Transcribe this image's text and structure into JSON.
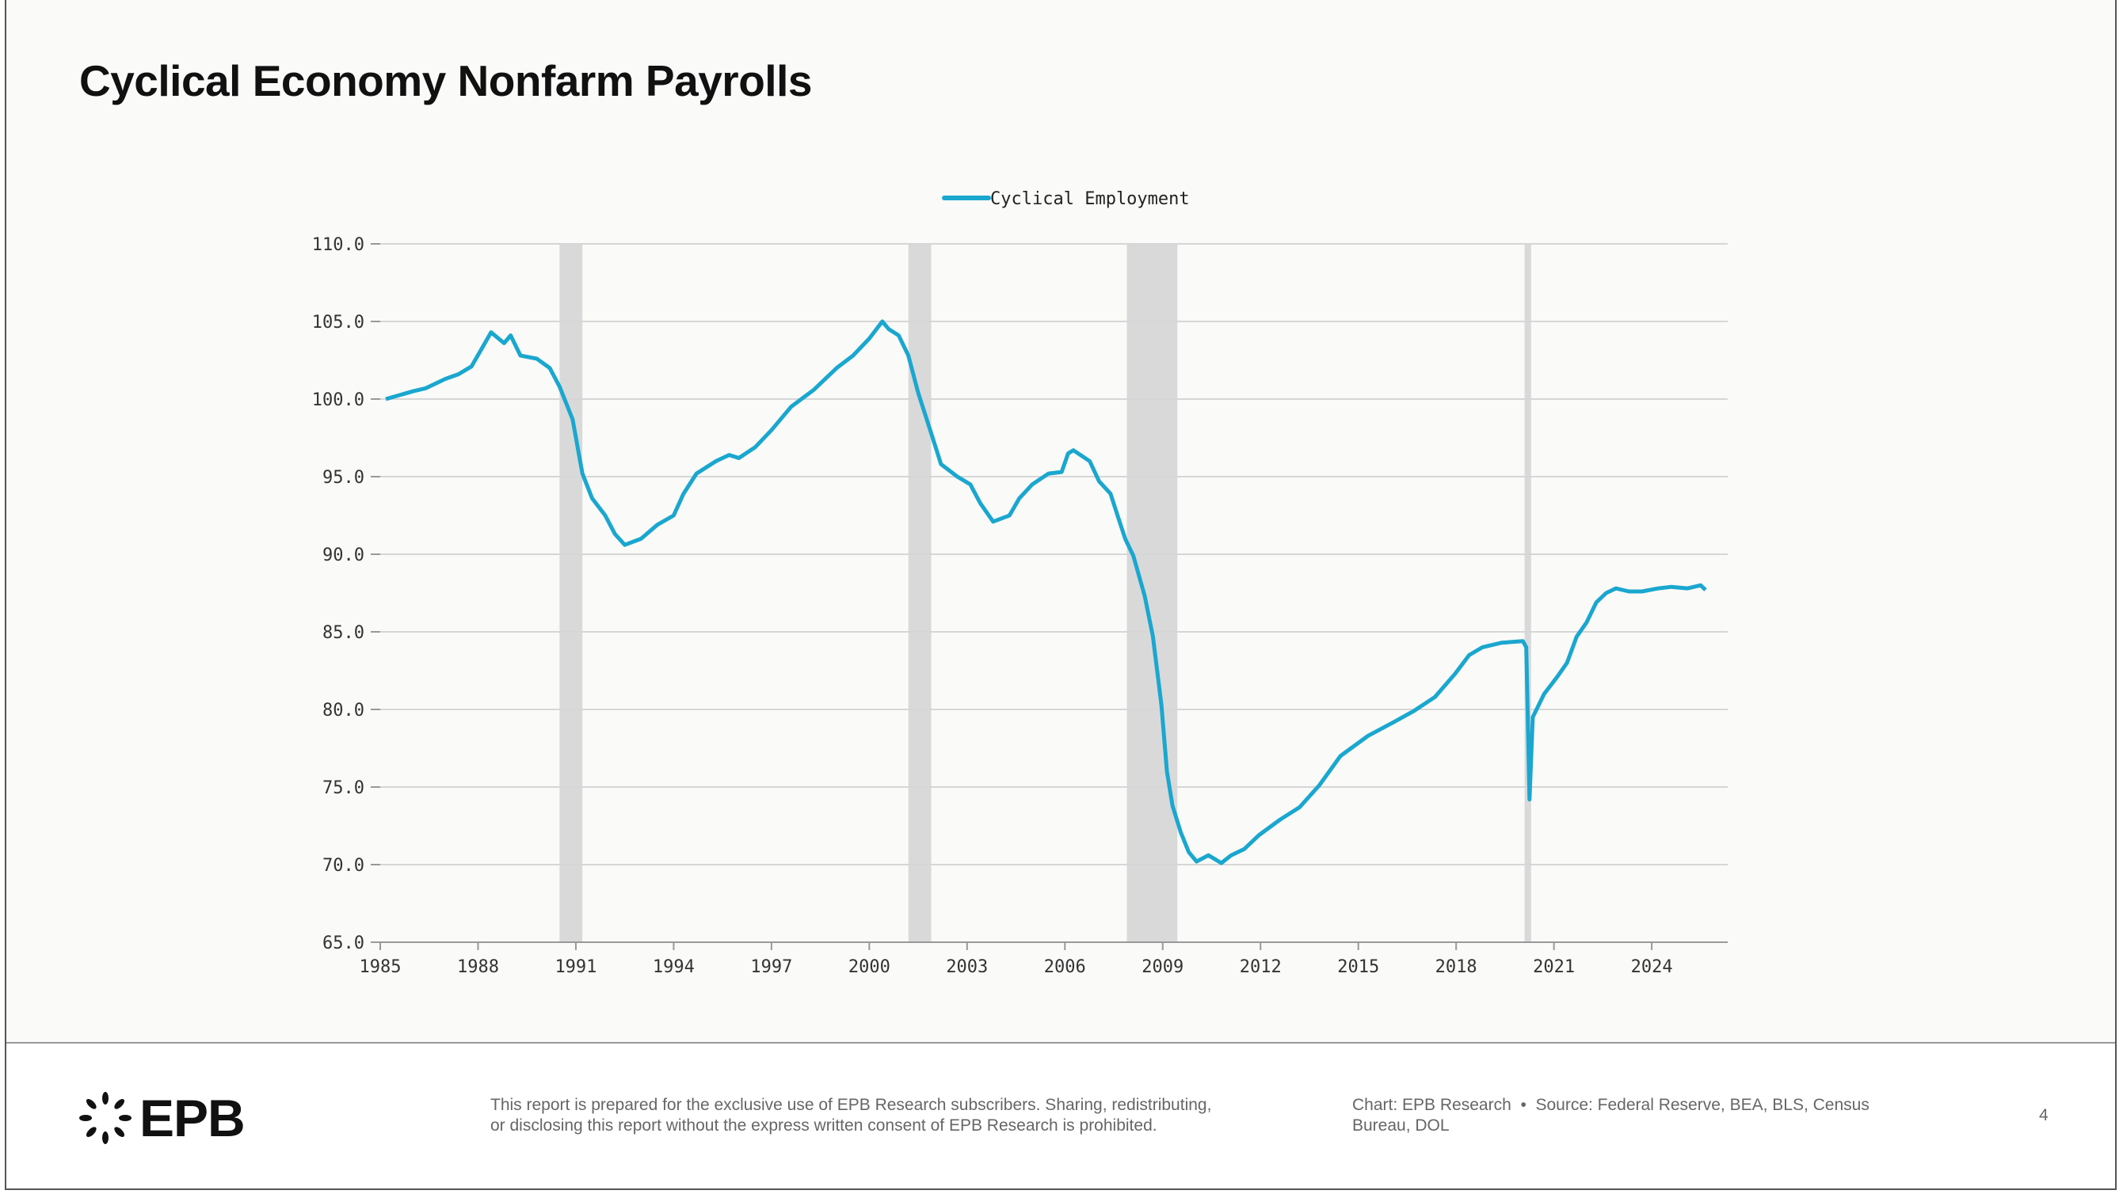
{
  "page": {
    "title": "Cyclical Economy Nonfarm Payrolls",
    "page_number": "4"
  },
  "footer": {
    "logo_text": "EPB",
    "disclaimer_line1": "This report is prepared for the exclusive use of EPB Research subscribers. Sharing, redistributing,",
    "disclaimer_line2": "or disclosing this report without the express written consent of EPB Research is prohibited.",
    "chart_credit": "Chart: EPB Research",
    "separator": "•",
    "source_line1": "Source: Federal Reserve, BEA, BLS, Census",
    "source_line2": "Bureau, DOL"
  },
  "colors": {
    "series": "#1aa7cf",
    "recession": "#d9d9d9",
    "grid": "#d6d6d6"
  },
  "chart_data": {
    "type": "line",
    "title": "Cyclical Economy Nonfarm Payrolls",
    "xlabel": "",
    "ylabel": "",
    "xlim": [
      1985,
      2026.33
    ],
    "ylim": [
      65,
      110
    ],
    "grid": "horizontal",
    "legend_placement": "top-center",
    "x_ticks": [
      1985,
      1988,
      1991,
      1994,
      1997,
      2000,
      2003,
      2006,
      2009,
      2012,
      2015,
      2018,
      2021,
      2024
    ],
    "x_tick_labels": [
      "1985",
      "1988",
      "1991",
      "1994",
      "1997",
      "2000",
      "2003",
      "2006",
      "2009",
      "2012",
      "2015",
      "2018",
      "2021",
      "2024"
    ],
    "y_ticks": [
      65,
      70,
      75,
      80,
      85,
      90,
      95,
      100,
      105,
      110
    ],
    "y_tick_labels": [
      "65.0",
      "70.0",
      "75.0",
      "80.0",
      "85.0",
      "90.0",
      "95.0",
      "100.0",
      "105.0",
      "110.0"
    ],
    "recessions": [
      [
        1990.5,
        1991.2
      ],
      [
        2001.2,
        2001.9
      ],
      [
        2007.9,
        2009.45
      ],
      [
        2020.1,
        2020.3
      ]
    ],
    "series": [
      {
        "name": "Cyclical Employment",
        "x": [
          1985.17,
          1985.5,
          1986.0,
          1986.4,
          1987.0,
          1987.4,
          1987.8,
          1988.1,
          1988.4,
          1988.8,
          1989.0,
          1989.3,
          1989.8,
          1990.2,
          1990.5,
          1990.9,
          1991.2,
          1991.5,
          1991.9,
          1992.2,
          1992.5,
          1993.0,
          1993.5,
          1994.0,
          1994.3,
          1994.7,
          1995.3,
          1995.7,
          1996.0,
          1996.5,
          1997.0,
          1997.6,
          1998.3,
          1999.0,
          1999.5,
          2000.0,
          2000.4,
          2000.6,
          2000.9,
          2001.2,
          2001.5,
          2001.9,
          2002.2,
          2002.7,
          2003.1,
          2003.4,
          2003.8,
          2004.3,
          2004.6,
          2005.0,
          2005.5,
          2005.9,
          2006.1,
          2006.26,
          2006.76,
          2007.05,
          2007.4,
          2007.6,
          2007.85,
          2008.1,
          2008.45,
          2008.7,
          2008.96,
          2009.13,
          2009.3,
          2009.55,
          2009.8,
          2010.04,
          2010.4,
          2010.8,
          2011.1,
          2011.5,
          2011.95,
          2012.6,
          2013.2,
          2013.8,
          2014.45,
          2015.3,
          2016.1,
          2016.7,
          2017.35,
          2017.97,
          2018.4,
          2018.8,
          2019.4,
          2020.05,
          2020.15,
          2020.25,
          2020.35,
          2020.7,
          2021.1,
          2021.4,
          2021.7,
          2022.0,
          2022.3,
          2022.6,
          2022.9,
          2023.3,
          2023.7,
          2024.2,
          2024.6,
          2025.1,
          2025.5,
          2025.65
        ],
        "y": [
          100.0,
          100.2,
          100.5,
          100.7,
          101.3,
          101.6,
          102.1,
          103.2,
          104.3,
          103.6,
          104.1,
          102.8,
          102.6,
          102.0,
          100.8,
          98.7,
          95.2,
          93.6,
          92.5,
          91.3,
          90.6,
          91.0,
          91.9,
          92.5,
          93.9,
          95.2,
          96.0,
          96.4,
          96.2,
          96.9,
          98.0,
          99.5,
          100.6,
          102.0,
          102.8,
          103.9,
          105.0,
          104.5,
          104.1,
          102.8,
          100.4,
          97.8,
          95.8,
          95.0,
          94.5,
          93.3,
          92.1,
          92.5,
          93.6,
          94.5,
          95.2,
          95.3,
          96.5,
          96.7,
          96.0,
          94.7,
          93.9,
          92.6,
          91.0,
          89.9,
          87.3,
          84.7,
          80.3,
          76.0,
          73.8,
          72.1,
          70.8,
          70.2,
          70.6,
          70.1,
          70.6,
          71.0,
          71.9,
          72.9,
          73.7,
          75.1,
          77.0,
          78.3,
          79.2,
          79.9,
          80.8,
          82.3,
          83.5,
          84.0,
          84.3,
          84.4,
          84.0,
          74.2,
          79.5,
          81.0,
          82.1,
          83.0,
          84.7,
          85.6,
          86.9,
          87.5,
          87.8,
          87.6,
          87.6,
          87.8,
          87.9,
          87.8,
          88.0,
          87.7
        ]
      }
    ]
  }
}
